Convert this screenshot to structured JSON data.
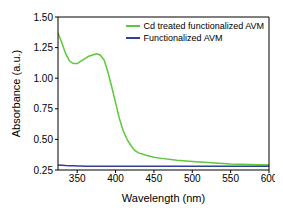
{
  "chart_data": {
    "type": "line",
    "x_label": "Wavelength (nm)",
    "y_label": "Absorbance (a.u.)",
    "x": [
      325,
      330,
      335,
      340,
      345,
      350,
      355,
      360,
      365,
      370,
      375,
      380,
      385,
      390,
      395,
      400,
      405,
      410,
      415,
      420,
      425,
      430,
      440,
      450,
      460,
      480,
      500,
      525,
      550,
      575,
      600
    ],
    "series": [
      {
        "name": "Cd treated functionalized AVM",
        "color": "#5cc83a",
        "values": [
          1.37,
          1.29,
          1.2,
          1.14,
          1.12,
          1.12,
          1.14,
          1.16,
          1.18,
          1.19,
          1.2,
          1.19,
          1.15,
          1.05,
          0.93,
          0.8,
          0.67,
          0.57,
          0.5,
          0.45,
          0.41,
          0.39,
          0.37,
          0.355,
          0.345,
          0.33,
          0.32,
          0.31,
          0.3,
          0.295,
          0.29
        ]
      },
      {
        "name": "Functionalized AVM",
        "color": "#2f3f9e",
        "values": [
          0.29,
          0.288,
          0.286,
          0.285,
          0.284,
          0.283,
          0.282,
          0.281,
          0.28,
          0.28,
          0.28,
          0.28,
          0.28,
          0.28,
          0.28,
          0.28,
          0.28,
          0.28,
          0.28,
          0.28,
          0.28,
          0.28,
          0.28,
          0.28,
          0.28,
          0.28,
          0.28,
          0.28,
          0.28,
          0.28,
          0.28
        ]
      }
    ],
    "xlim": [
      325,
      600
    ],
    "ylim": [
      0.25,
      1.5
    ],
    "xticks": [
      350,
      400,
      450,
      500,
      550,
      600
    ],
    "yticks": [
      0.25,
      {
        "value": 0.5,
        "label": "0.50"
      },
      0.75,
      {
        "value": 1.0,
        "label": "1.00"
      },
      1.25,
      {
        "value": 1.5,
        "label": "1.50"
      }
    ],
    "grid": false,
    "legend": "upper right"
  }
}
